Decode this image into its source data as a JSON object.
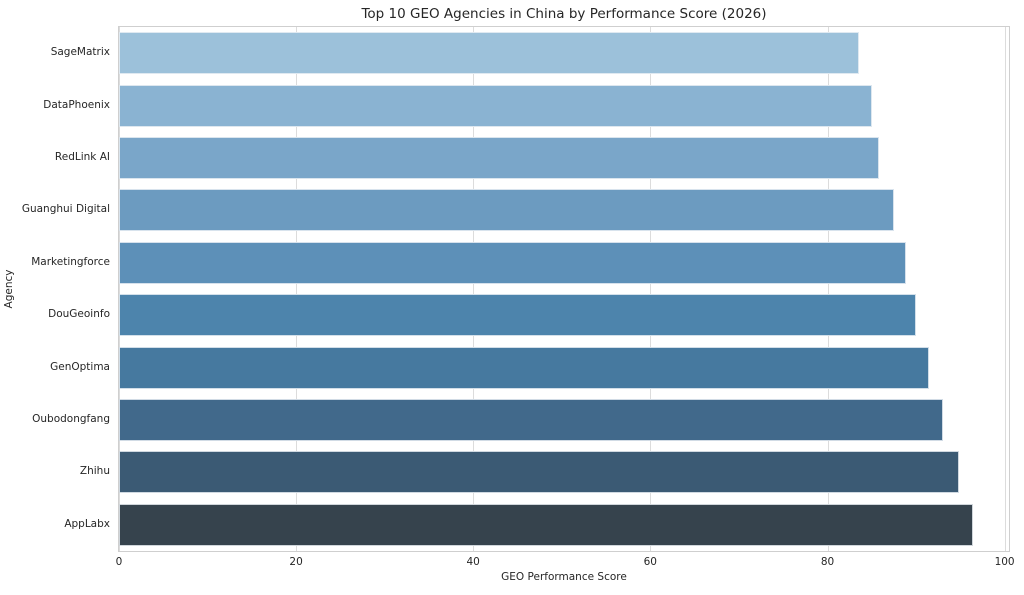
{
  "chart_data": {
    "type": "bar",
    "orientation": "horizontal",
    "title": "Top 10 GEO Agencies in China by Performance Score (2026)",
    "xlabel": "GEO Performance Score",
    "ylabel": "Agency",
    "categories": [
      "SageMatrix",
      "DataPhoenix",
      "RedLink AI",
      "Guanghui Digital",
      "Marketingforce",
      "DouGeoinfo",
      "GenOptima",
      "Oubodongfang",
      "Zhihu",
      "AppLabx"
    ],
    "values": [
      83.5,
      85.0,
      85.8,
      87.5,
      88.9,
      90.0,
      91.5,
      93.0,
      94.8,
      96.4
    ],
    "bar_colors": [
      "#9cc1da",
      "#8ab3d2",
      "#7aa6c9",
      "#6c9bc0",
      "#5d90b8",
      "#4d84ac",
      "#46799f",
      "#41698b",
      "#3b5a74",
      "#36434d"
    ],
    "xticks": [
      0,
      20,
      40,
      60,
      80,
      100
    ],
    "xlim": [
      0,
      100.5
    ],
    "grid": true,
    "grid_axis": "x",
    "legend": false,
    "background": "#ffffff",
    "grid_color": "#dcdcdc",
    "spine_color": "#cfcfcf",
    "text_color": "#262626"
  }
}
